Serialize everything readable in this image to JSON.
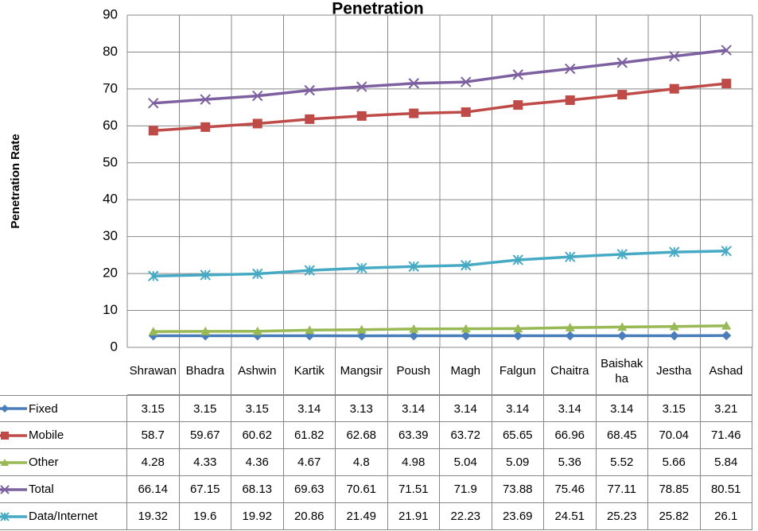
{
  "chart_data": {
    "type": "line",
    "title": "Penetration",
    "y_label": "Penetration Rate",
    "categories": [
      "Shrawan",
      "Bhadra",
      "Ashwin",
      "Kartik",
      "Mangsir",
      "Poush",
      "Magh",
      "Falgun",
      "Chaitra",
      "Baishakha",
      "Jestha",
      "Ashad"
    ],
    "series": [
      {
        "name": "Fixed",
        "color": "#4a7ebb",
        "marker": "diamond",
        "values": [
          3.15,
          3.15,
          3.15,
          3.14,
          3.13,
          3.14,
          3.14,
          3.14,
          3.14,
          3.14,
          3.15,
          3.21
        ]
      },
      {
        "name": "Mobile",
        "color": "#be4b48",
        "marker": "square",
        "values": [
          58.7,
          59.67,
          60.62,
          61.82,
          62.68,
          63.39,
          63.72,
          65.65,
          66.96,
          68.45,
          70.04,
          71.46
        ]
      },
      {
        "name": "Other",
        "color": "#98b954",
        "marker": "triangle",
        "values": [
          4.28,
          4.33,
          4.36,
          4.67,
          4.8,
          4.98,
          5.04,
          5.09,
          5.36,
          5.52,
          5.66,
          5.84
        ]
      },
      {
        "name": "Total",
        "color": "#7d60a0",
        "marker": "x",
        "values": [
          66.14,
          67.15,
          68.13,
          69.63,
          70.61,
          71.51,
          71.9,
          73.88,
          75.46,
          77.11,
          78.85,
          80.51
        ]
      },
      {
        "name": "Data/Internet",
        "color": "#46aac5",
        "marker": "star",
        "values": [
          19.32,
          19.6,
          19.92,
          20.86,
          21.49,
          21.91,
          22.23,
          23.69,
          24.51,
          25.23,
          25.82,
          26.1
        ]
      }
    ],
    "ylim": [
      0,
      90
    ],
    "yticks": [
      0,
      10,
      20,
      30,
      40,
      50,
      60,
      70,
      80,
      90
    ],
    "grid": true,
    "legend": "data-table"
  }
}
